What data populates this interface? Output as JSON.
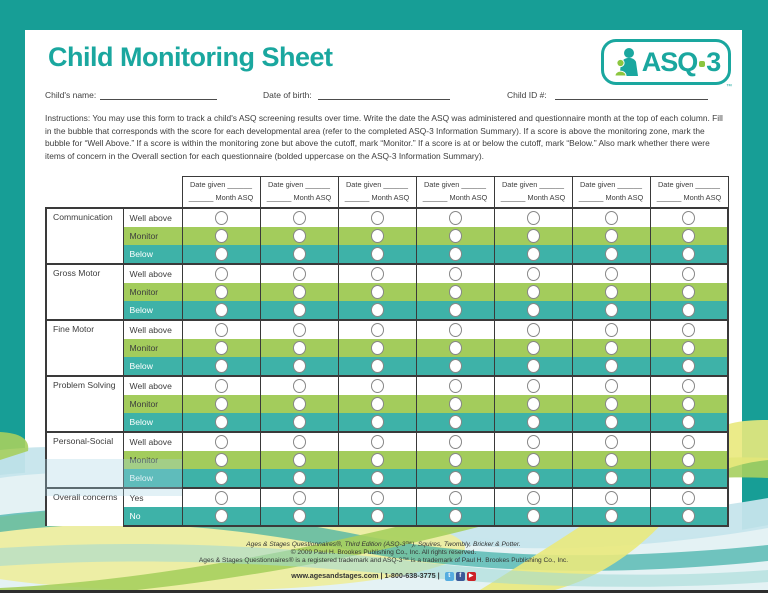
{
  "page": {
    "title": "Child Monitoring Sheet",
    "logo": {
      "asq": "ASQ",
      "three": "3",
      "tm": "™"
    },
    "fields": [
      {
        "label": "Child's name:"
      },
      {
        "label": "Date of birth:"
      },
      {
        "label": "Child ID #:"
      }
    ],
    "instructions": "Instructions: You may use this form to track a child's ASQ screening results over time. Write the date the ASQ was administered and questionnaire month at the top of each column. Fill in the bubble that corresponds with the score for each developmental area (refer to the completed ASQ-3 Information Summary). If a score is above the monitoring zone, mark the bubble for “Well Above.” If a score is within the monitoring zone but above the cutoff, mark “Monitor.” If a score is at or below the cutoff, mark “Below.” Also mark whether there were items of concern in the Overall section for each questionnaire (bolded uppercase on the ASQ-3 Information Summary)."
  },
  "table": {
    "column_header_line1": "Date given ______",
    "column_header_line2": "______ Month ASQ",
    "num_data_columns": 7,
    "groups": [
      {
        "category": "Communication",
        "rows": [
          {
            "label": "Well above",
            "tone": "white"
          },
          {
            "label": "Monitor",
            "tone": "green"
          },
          {
            "label": "Below",
            "tone": "teal"
          }
        ]
      },
      {
        "category": "Gross Motor",
        "rows": [
          {
            "label": "Well above",
            "tone": "white"
          },
          {
            "label": "Monitor",
            "tone": "green"
          },
          {
            "label": "Below",
            "tone": "teal"
          }
        ]
      },
      {
        "category": "Fine Motor",
        "rows": [
          {
            "label": "Well above",
            "tone": "white"
          },
          {
            "label": "Monitor",
            "tone": "green"
          },
          {
            "label": "Below",
            "tone": "teal"
          }
        ]
      },
      {
        "category": "Problem Solving",
        "rows": [
          {
            "label": "Well above",
            "tone": "white"
          },
          {
            "label": "Monitor",
            "tone": "green"
          },
          {
            "label": "Below",
            "tone": "teal"
          }
        ]
      },
      {
        "category": "Personal-Social",
        "rows": [
          {
            "label": "Well above",
            "tone": "white"
          },
          {
            "label": "Monitor",
            "tone": "green"
          },
          {
            "label": "Below",
            "tone": "teal"
          }
        ]
      },
      {
        "category": "Overall concerns",
        "rows": [
          {
            "label": "Yes",
            "tone": "white"
          },
          {
            "label": "No",
            "tone": "teal"
          }
        ]
      }
    ]
  },
  "footer": {
    "line1": "Ages & Stages Questionnaires®, Third Edition (ASQ-3™), Squires, Twombly, Bricker & Potter.",
    "line2": "© 2009 Paul H. Brookes Publishing Co., Inc. All rights reserved.",
    "line3": "Ages & Stages Questionnaires® is a registered trademark and ASQ-3™ is a trademark of Paul H. Brookes Publishing Co., Inc.",
    "line4": "www.agesandstages.com | 1-800-638-3775 |",
    "social": [
      {
        "name": "twitter-icon",
        "glyph": "t",
        "color": "#55ade0"
      },
      {
        "name": "facebook-icon",
        "glyph": "f",
        "color": "#3b5998"
      },
      {
        "name": "youtube-icon",
        "glyph": "▶",
        "color": "#cc2127"
      }
    ]
  },
  "colors": {
    "brand_teal": "#1aa79f",
    "frame_teal": "#179e96",
    "logo_green": "#8cc63f",
    "row_green": "#a3cc5c",
    "row_teal": "#3eb2a8",
    "table_border": "#3a3a3a"
  }
}
